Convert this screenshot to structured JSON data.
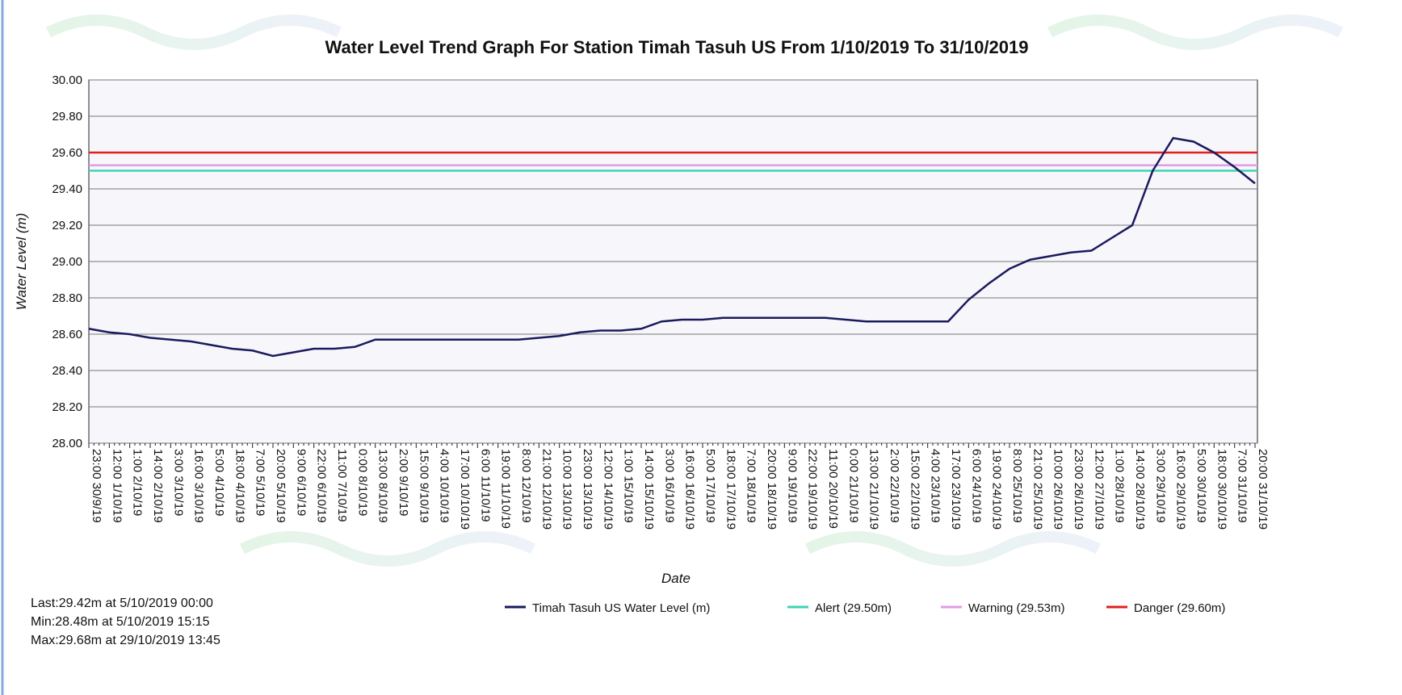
{
  "chart_data": {
    "type": "line",
    "title": "Water Level Trend Graph For Station Timah Tasuh US From 1/10/2019 To 31/10/2019",
    "y_label": "Water Level (m)",
    "x_label": "Date",
    "categories": [
      "23:00 30/9/19",
      "12:00 1/10/19",
      "1:00 2/10/19",
      "14:00 2/10/19",
      "3:00 3/10/19",
      "16:00 3/10/19",
      "5:00 4/10/19",
      "18:00 4/10/19",
      "7:00 5/10/19",
      "20:00 5/10/19",
      "9:00 6/10/19",
      "22:00 6/10/19",
      "11:00 7/10/19",
      "0:00 8/10/19",
      "13:00 8/10/19",
      "2:00 9/10/19",
      "15:00 9/10/19",
      "4:00 10/10/19",
      "17:00 10/10/19",
      "6:00 11/10/19",
      "19:00 11/10/19",
      "8:00 12/10/19",
      "21:00 12/10/19",
      "10:00 13/10/19",
      "23:00 13/10/19",
      "12:00 14/10/19",
      "1:00 15/10/19",
      "14:00 15/10/19",
      "3:00 16/10/19",
      "16:00 16/10/19",
      "5:00 17/10/19",
      "18:00 17/10/19",
      "7:00 18/10/19",
      "20:00 18/10/19",
      "9:00 19/10/19",
      "22:00 19/10/19",
      "11:00 20/10/19",
      "0:00 21/10/19",
      "13:00 21/10/19",
      "2:00 22/10/19",
      "15:00 22/10/19",
      "4:00 23/10/19",
      "17:00 23/10/19",
      "6:00 24/10/19",
      "19:00 24/10/19",
      "8:00 25/10/19",
      "21:00 25/10/19",
      "10:00 26/10/19",
      "23:00 26/10/19",
      "12:00 27/10/19",
      "1:00 28/10/19",
      "14:00 28/10/19",
      "3:00 29/10/19",
      "16:00 29/10/19",
      "5:00 30/10/19",
      "18:00 30/10/19",
      "7:00 31/10/19",
      "20:00 31/10/19"
    ],
    "series": [
      {
        "name": "Timah Tasuh US Water Level (m)",
        "color": "#1a1a5e",
        "values": [
          28.63,
          28.61,
          28.6,
          28.58,
          28.57,
          28.56,
          28.54,
          28.52,
          28.51,
          28.48,
          28.5,
          28.52,
          28.52,
          28.53,
          28.57,
          28.57,
          28.57,
          28.57,
          28.57,
          28.57,
          28.57,
          28.57,
          28.58,
          28.59,
          28.61,
          28.62,
          28.62,
          28.63,
          28.67,
          28.68,
          28.68,
          28.69,
          28.69,
          28.69,
          28.69,
          28.69,
          28.69,
          28.68,
          28.67,
          28.67,
          28.67,
          28.67,
          28.67,
          28.79,
          28.88,
          28.96,
          29.01,
          29.03,
          29.05,
          29.06,
          29.13,
          29.2,
          29.5,
          29.68,
          29.66,
          29.6,
          29.52,
          29.43
        ]
      }
    ],
    "thresholds": [
      {
        "name": "Alert (29.50m)",
        "color": "#3fd3b4",
        "value": 29.5
      },
      {
        "name": "Warning (29.53m)",
        "color": "#e39be3",
        "value": 29.53
      },
      {
        "name": "Danger (29.60m)",
        "color": "#e01f1f",
        "value": 29.6
      }
    ],
    "ylim": [
      28,
      30
    ],
    "yticks": [
      {
        "value": 28,
        "label": "28.00"
      },
      {
        "value": 28.2,
        "label": "28.20"
      },
      {
        "value": 28.4,
        "label": "28.40"
      },
      {
        "value": 28.6,
        "label": "28.60"
      },
      {
        "value": 28.8,
        "label": "28.80"
      },
      {
        "value": 29,
        "label": "29.00"
      },
      {
        "value": 29.2,
        "label": "29.20"
      },
      {
        "value": 29.4,
        "label": "29.40"
      },
      {
        "value": 29.6,
        "label": "29.60"
      },
      {
        "value": 29.8,
        "label": "29.80"
      },
      {
        "value": 30,
        "label": "30.00"
      }
    ],
    "grid": true,
    "annotations": [
      "Last:29.42m at 5/10/2019 00:00",
      "Min:28.48m at 5/10/2019 15:15",
      "Max:29.68m at 29/10/2019 13:45"
    ]
  }
}
